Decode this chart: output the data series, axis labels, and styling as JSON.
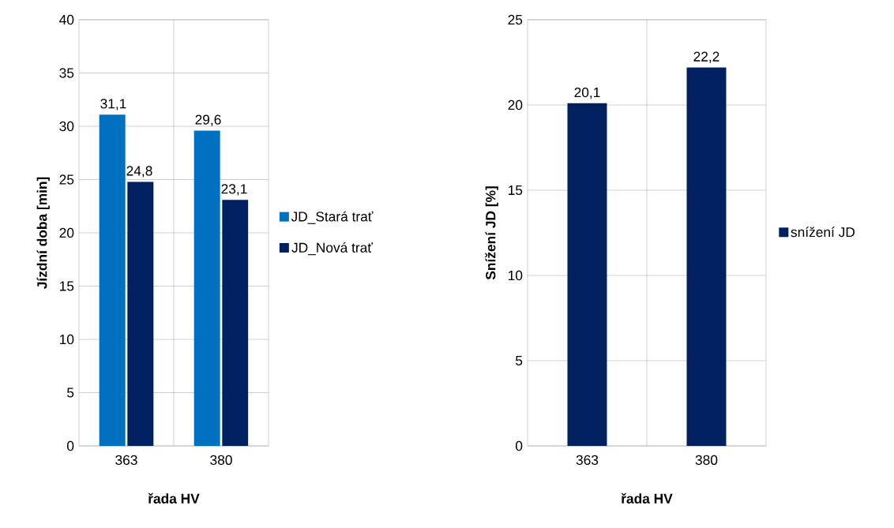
{
  "chart_data": [
    {
      "type": "bar",
      "xlabel": "řada HV",
      "ylabel": "Jízdní doba [min]",
      "categories": [
        "363",
        "380"
      ],
      "series": [
        {
          "name": "JD_Stará trať",
          "color": "#0070c0",
          "values": [
            31.1,
            29.6
          ],
          "value_labels": [
            "31,1",
            "29,6"
          ]
        },
        {
          "name": "JD_Nová trať",
          "color": "#002060",
          "values": [
            24.8,
            23.1
          ],
          "value_labels": [
            "24,8",
            "23,1"
          ]
        }
      ],
      "ylim": [
        0,
        40
      ],
      "yticks": [
        0,
        5,
        10,
        15,
        20,
        25,
        30,
        35,
        40
      ],
      "grid": "y",
      "legend": "right"
    },
    {
      "type": "bar",
      "xlabel": "řada HV",
      "ylabel": "Snížení JD [%]",
      "categories": [
        "363",
        "380"
      ],
      "series": [
        {
          "name": "snížení JD",
          "color": "#002060",
          "values": [
            20.1,
            22.2
          ],
          "value_labels": [
            "20,1",
            "22,2"
          ]
        }
      ],
      "ylim": [
        0,
        25
      ],
      "yticks": [
        0,
        5,
        10,
        15,
        20,
        25
      ],
      "grid": "y",
      "legend": "right"
    }
  ]
}
